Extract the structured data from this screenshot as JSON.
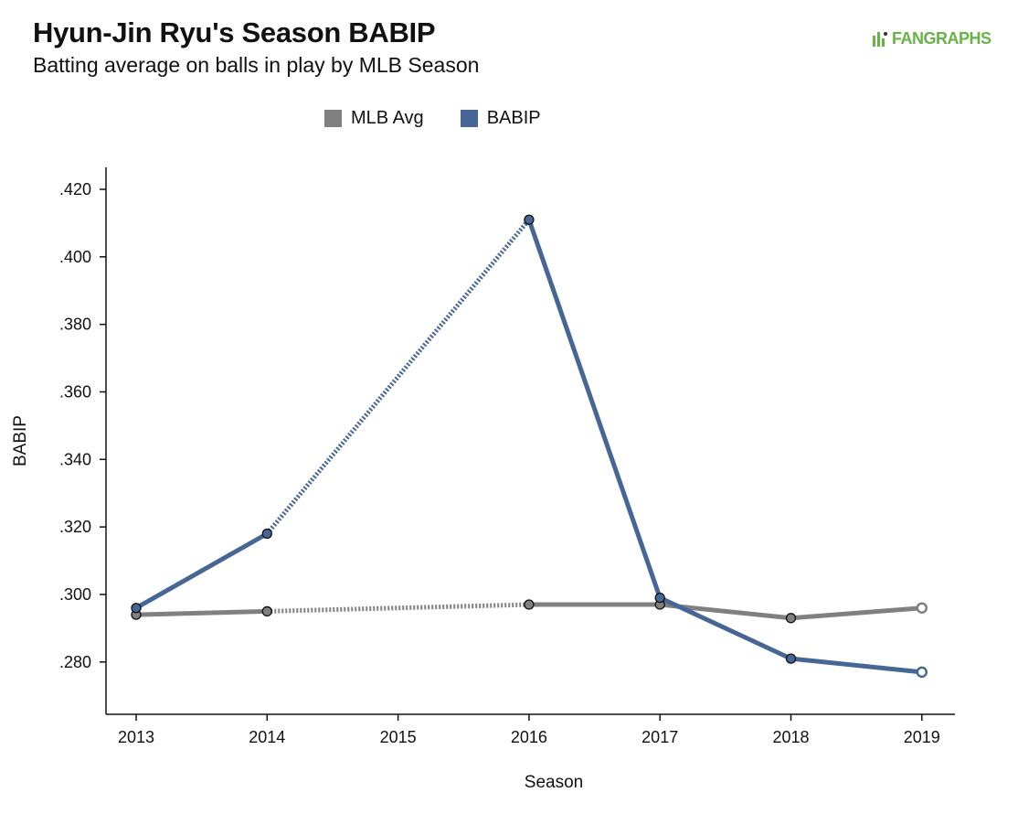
{
  "header": {
    "title": "Hyun-Jin Ryu's Season BABIP",
    "subtitle": "Batting average on balls in play by MLB Season",
    "logo_text": "FANGRAPHS"
  },
  "colors": {
    "babip": "#466796",
    "mlb_avg": "#808080",
    "logo": "#67b346"
  },
  "chart_data": {
    "type": "line",
    "title": "Hyun-Jin Ryu's Season BABIP",
    "subtitle": "Batting average on balls in play by MLB Season",
    "xlabel": "Season",
    "ylabel": "BABIP",
    "x_ticks": [
      "2013",
      "2014",
      "2015",
      "2016",
      "2017",
      "2018",
      "2019"
    ],
    "y_ticks": [
      ".280",
      ".300",
      ".320",
      ".340",
      ".360",
      ".380",
      ".400",
      ".420"
    ],
    "ylim": [
      0.2645,
      0.4265
    ],
    "legend_position": "top-center",
    "grid": false,
    "series": [
      {
        "name": "MLB Avg",
        "color": "#808080",
        "points": [
          {
            "x": 2013,
            "y": 0.294
          },
          {
            "x": 2014,
            "y": 0.295
          },
          {
            "x": 2016,
            "y": 0.297
          },
          {
            "x": 2017,
            "y": 0.297
          },
          {
            "x": 2018,
            "y": 0.293
          },
          {
            "x": 2019,
            "y": 0.296
          }
        ]
      },
      {
        "name": "BABIP",
        "color": "#466796",
        "points": [
          {
            "x": 2013,
            "y": 0.296
          },
          {
            "x": 2014,
            "y": 0.318
          },
          {
            "x": 2016,
            "y": 0.411
          },
          {
            "x": 2017,
            "y": 0.299
          },
          {
            "x": 2018,
            "y": 0.281
          },
          {
            "x": 2019,
            "y": 0.277
          }
        ]
      }
    ]
  }
}
